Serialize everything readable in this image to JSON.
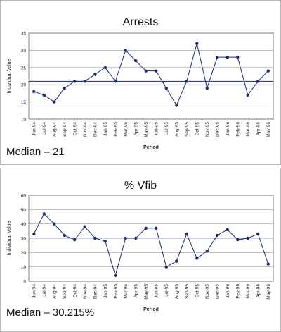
{
  "chart_data": [
    {
      "type": "line",
      "title": "Arrests",
      "xlabel": "Period",
      "ylabel": "Individual Value",
      "ylim": [
        10,
        35
      ],
      "yticks": [
        10,
        15,
        20,
        25,
        30,
        35
      ],
      "median_line": 21,
      "caption": "Median – 21",
      "categories": [
        "Jun-94",
        "Jul-94",
        "Aug-94",
        "Sep-94",
        "Oct-94",
        "Nov-94",
        "Dec-94",
        "Jan-95",
        "Feb-95",
        "Mar-95",
        "Apr-95",
        "May-95",
        "Jun-95",
        "Jul-95",
        "Aug-95",
        "Sep-95",
        "Oct-95",
        "Nov-95",
        "Dec-95",
        "Jan-96",
        "Feb-96",
        "Mar-96",
        "Apr-96",
        "May-96"
      ],
      "values": [
        18,
        17,
        15,
        19,
        21,
        21,
        23,
        25,
        21,
        30,
        27,
        24,
        24,
        19,
        14,
        21,
        32,
        19,
        28,
        28,
        28,
        17,
        21,
        24
      ],
      "colors": {
        "line": "#1c2a6e",
        "marker": "#1c2a6e",
        "median": "#1c2a6e",
        "grid": "#9a9a9a"
      }
    },
    {
      "type": "line",
      "title": "% Vfib",
      "xlabel": "Period",
      "ylabel": "Individual Value",
      "ylim": [
        0,
        60
      ],
      "yticks": [
        0,
        10,
        20,
        30,
        40,
        50,
        60
      ],
      "median_line": 30.215,
      "caption": "Median – 30.215%",
      "categories": [
        "Jun-94",
        "Jul-94",
        "Aug-94",
        "Sep-94",
        "Oct-94",
        "Nov-94",
        "Dec-94",
        "Jan-95",
        "Feb-95",
        "Mar-95",
        "Apr-95",
        "May-95",
        "Jun-95",
        "Jul-95",
        "Aug-95",
        "Sep-95",
        "Oct-95",
        "Nov-95",
        "Dec-95",
        "Jan-96",
        "Feb-96",
        "Mar-96",
        "Apr-96",
        "May-96"
      ],
      "values": [
        33,
        47,
        40,
        32,
        29,
        38,
        30,
        28,
        4,
        30,
        30,
        37,
        37,
        10,
        14,
        33,
        16,
        21,
        32,
        36,
        29,
        30,
        33,
        12
      ],
      "colors": {
        "line": "#1c2a6e",
        "marker": "#1c2a6e",
        "median": "#1c2a6e",
        "grid": "#9a9a9a"
      }
    }
  ]
}
